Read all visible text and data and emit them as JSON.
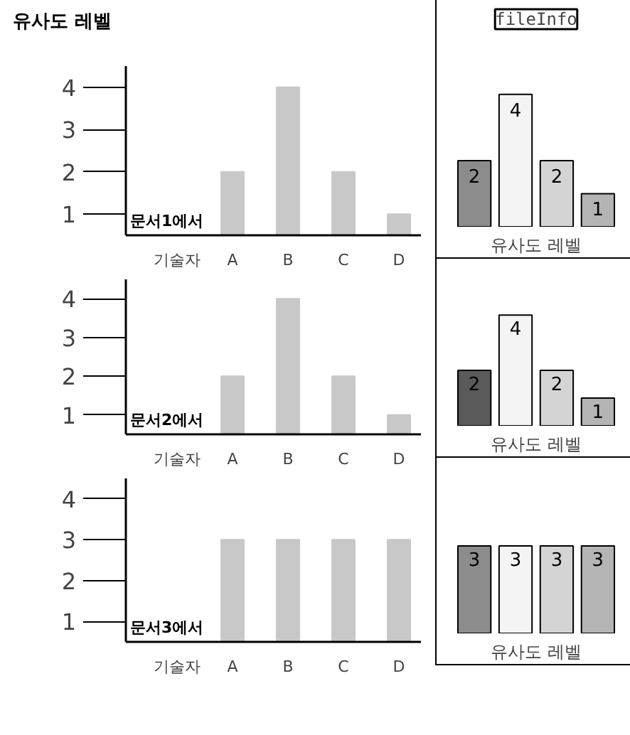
{
  "chart_data": [
    {
      "type": "bar",
      "ylabel": "유사도 레벨",
      "categories": [
        "A",
        "B",
        "C",
        "D"
      ],
      "values": [
        2,
        4,
        2,
        1
      ],
      "color": "#c8c8c8",
      "ylim": [
        0.5,
        4.5
      ],
      "yticks": [
        1,
        2,
        3,
        4
      ],
      "annotations": [
        "문서1에서",
        "기술자"
      ]
    },
    {
      "type": "bar",
      "categories": [
        "A",
        "B",
        "C",
        "D"
      ],
      "values": [
        2,
        4,
        2,
        1
      ],
      "color": "#c8c8c8",
      "ylim": [
        0.5,
        4.5
      ],
      "yticks": [
        1,
        2,
        3,
        4
      ],
      "annotations": [
        "문서2에서",
        "기술자"
      ]
    },
    {
      "type": "bar",
      "categories": [
        "A",
        "B",
        "C",
        "D"
      ],
      "values": [
        3,
        3,
        3,
        3
      ],
      "color": "#c8c8c8",
      "ylim": [
        0.5,
        4.5
      ],
      "yticks": [
        1,
        2,
        3,
        4
      ],
      "annotations": [
        "문서3에서",
        "기술자"
      ]
    },
    {
      "type": "bar",
      "title": "fileInfo",
      "xlabel": "유사도 레벨",
      "categories": [
        null,
        null,
        null,
        null
      ],
      "values": [
        2,
        4,
        2,
        1
      ],
      "colors": [
        "#8c8c8c",
        "#f4f4f4",
        "#d4d4d4",
        "#b4b4b4"
      ],
      "data_labels": true
    },
    {
      "type": "bar",
      "xlabel": "유사도 레벨",
      "categories": [
        null,
        null,
        null,
        null
      ],
      "values": [
        2,
        4,
        2,
        1
      ],
      "colors": [
        "#5a5a5a",
        "#f4f4f4",
        "#d4d4d4",
        "#b4b4b4"
      ],
      "data_labels": true
    },
    {
      "type": "bar",
      "xlabel": "유사도 레벨",
      "categories": [
        null,
        null,
        null,
        null
      ],
      "values": [
        3,
        3,
        3,
        3
      ],
      "colors": [
        "#8c8c8c",
        "#f4f4f4",
        "#d4d4d4",
        "#b4b4b4"
      ],
      "data_labels": true
    }
  ]
}
